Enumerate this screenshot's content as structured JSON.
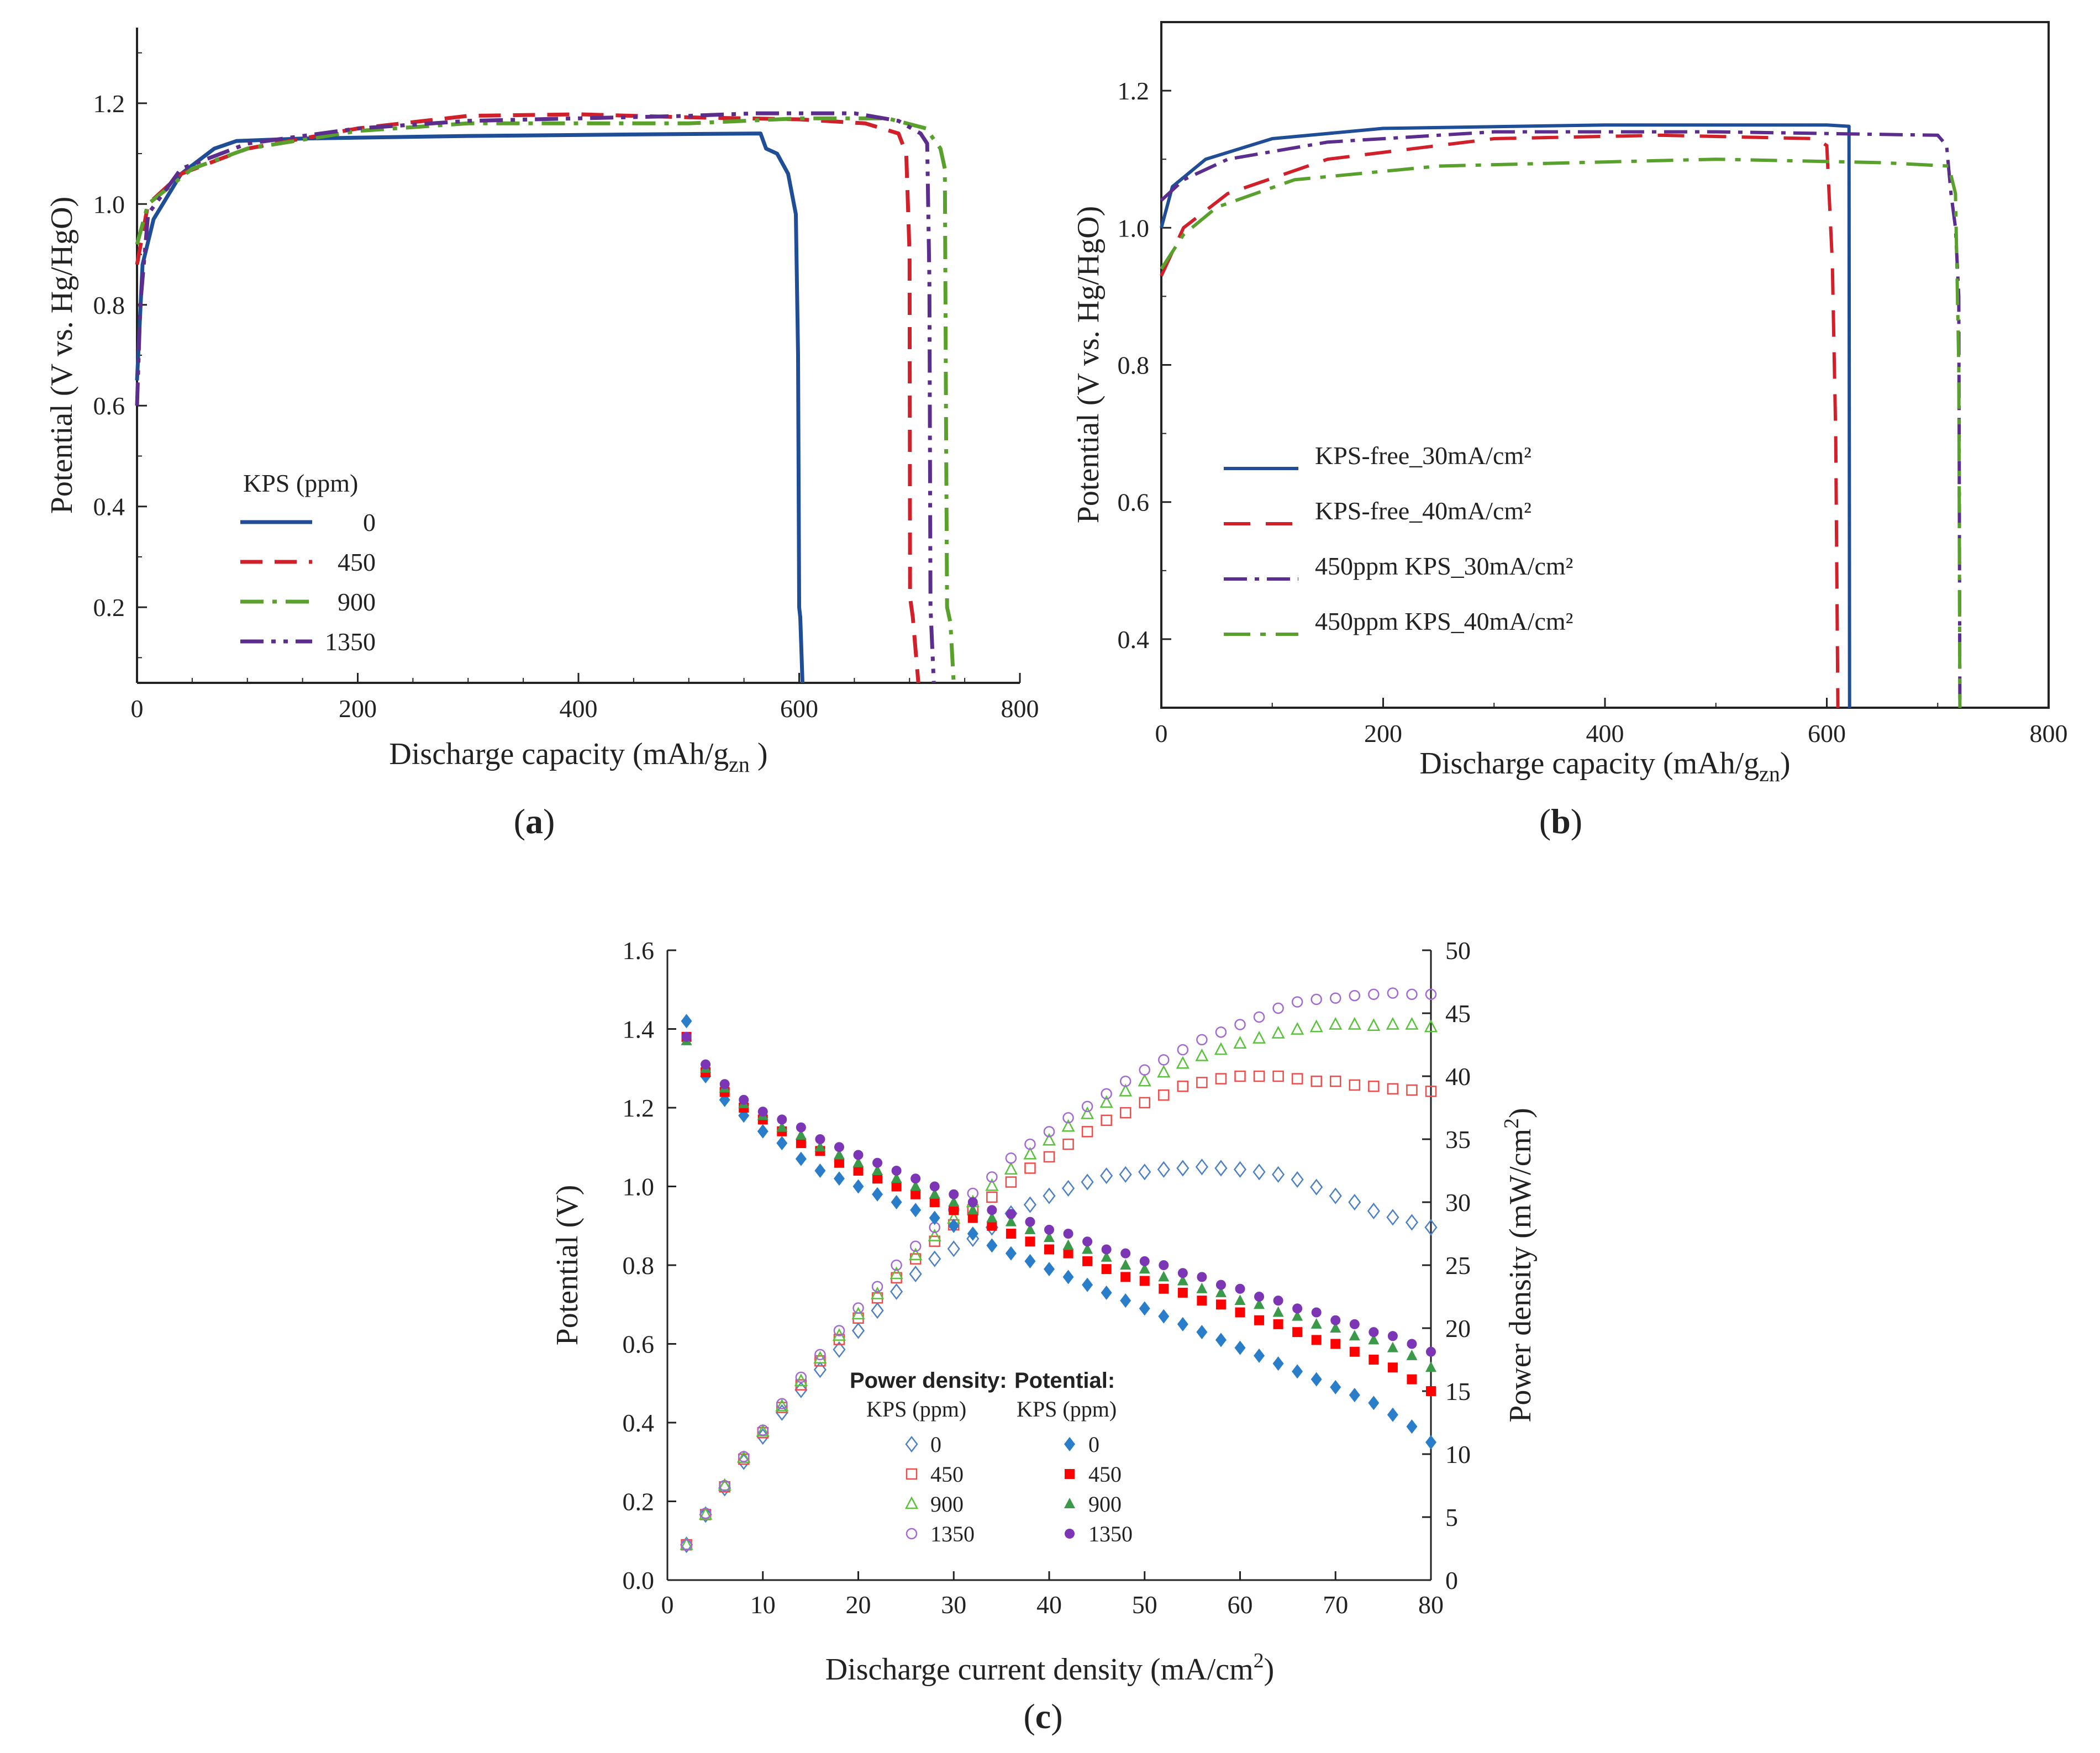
{
  "colors": {
    "kps0": "#1f4e96",
    "kps450": "#d0202a",
    "kps900": "#5aa02c",
    "kps1350": "#5b2d8c",
    "c_kps0": "#2a7dc9",
    "c_kps450": "#ff0000",
    "c_kps900": "#3a9a4a",
    "c_kps1350": "#7b35b5",
    "c_open0": "#4d80c4",
    "c_open450": "#ee4b4b",
    "c_open900": "#59c13a",
    "c_open1350": "#a06ad2"
  },
  "panels": {
    "a": "a",
    "b": "b",
    "c": "c"
  },
  "chart_data": [
    {
      "id": "a",
      "type": "line",
      "xlabel": "Discharge capacity (mAh/g",
      "xlabel_sub": "zn",
      "xlabel_tail": " )",
      "ylabel": "Potential (V vs. Hg/HgO)",
      "xlim": [
        0,
        800
      ],
      "ylim": [
        0.05,
        1.35
      ],
      "xticks": [
        0,
        200,
        400,
        600,
        800
      ],
      "yticks": [
        0.2,
        0.4,
        0.6,
        0.8,
        1,
        1.2
      ],
      "legend_title": "KPS (ppm)",
      "legend_position": "lower-left",
      "series": [
        {
          "name": "0",
          "style": "solid",
          "points": [
            [
              0,
              0.65
            ],
            [
              5,
              0.88
            ],
            [
              15,
              0.97
            ],
            [
              40,
              1.06
            ],
            [
              70,
              1.11
            ],
            [
              90,
              1.125
            ],
            [
              150,
              1.13
            ],
            [
              300,
              1.135
            ],
            [
              450,
              1.138
            ],
            [
              565,
              1.14
            ],
            [
              570,
              1.11
            ],
            [
              580,
              1.1
            ],
            [
              590,
              1.06
            ],
            [
              597,
              0.98
            ],
            [
              599,
              0.7
            ],
            [
              600,
              0.2
            ],
            [
              601,
              0.18
            ],
            [
              603,
              0.05
            ]
          ]
        },
        {
          "name": "450",
          "style": "dashed",
          "points": [
            [
              0,
              0.88
            ],
            [
              10,
              1.0
            ],
            [
              40,
              1.06
            ],
            [
              100,
              1.11
            ],
            [
              200,
              1.15
            ],
            [
              300,
              1.175
            ],
            [
              400,
              1.178
            ],
            [
              500,
              1.172
            ],
            [
              600,
              1.168
            ],
            [
              660,
              1.16
            ],
            [
              690,
              1.14
            ],
            [
              697,
              1.1
            ],
            [
              700,
              0.9
            ],
            [
              700.5,
              0.22
            ],
            [
              703,
              0.18
            ],
            [
              708,
              0.05
            ]
          ]
        },
        {
          "name": "900",
          "style": "dashdot",
          "points": [
            [
              0,
              0.92
            ],
            [
              10,
              1.0
            ],
            [
              50,
              1.07
            ],
            [
              100,
              1.11
            ],
            [
              200,
              1.145
            ],
            [
              300,
              1.16
            ],
            [
              500,
              1.16
            ],
            [
              600,
              1.17
            ],
            [
              680,
              1.17
            ],
            [
              715,
              1.15
            ],
            [
              728,
              1.11
            ],
            [
              732,
              1.07
            ],
            [
              733,
              0.6
            ],
            [
              734,
              0.2
            ],
            [
              737,
              0.17
            ],
            [
              740,
              0.05
            ]
          ]
        },
        {
          "name": "1350",
          "style": "dashdotdot",
          "points": [
            [
              0,
              0.6
            ],
            [
              3,
              0.8
            ],
            [
              10,
              0.98
            ],
            [
              40,
              1.07
            ],
            [
              100,
              1.12
            ],
            [
              200,
              1.15
            ],
            [
              300,
              1.165
            ],
            [
              400,
              1.17
            ],
            [
              500,
              1.175
            ],
            [
              560,
              1.18
            ],
            [
              650,
              1.18
            ],
            [
              690,
              1.165
            ],
            [
              710,
              1.14
            ],
            [
              716,
              1.12
            ],
            [
              718,
              0.85
            ],
            [
              719,
              0.2
            ],
            [
              722,
              0.05
            ]
          ]
        }
      ]
    },
    {
      "id": "b",
      "type": "line",
      "xlabel": "Discharge capacity (mAh/g",
      "xlabel_sub": "zn",
      "xlabel_tail": ")",
      "ylabel": "Potential (V vs. Hg/HgO)",
      "xlim": [
        0,
        800
      ],
      "ylim": [
        0.3,
        1.3
      ],
      "xticks": [
        0,
        200,
        400,
        600,
        800
      ],
      "yticks": [
        0.4,
        0.6,
        0.8,
        1,
        1.2
      ],
      "legend_position": "lower-left",
      "series": [
        {
          "name": "KPS-free_30mA/cm²",
          "style": "solid",
          "points": [
            [
              0,
              1.0
            ],
            [
              10,
              1.06
            ],
            [
              40,
              1.1
            ],
            [
              100,
              1.13
            ],
            [
              200,
              1.145
            ],
            [
              400,
              1.15
            ],
            [
              600,
              1.15
            ],
            [
              620,
              1.148
            ],
            [
              620.5,
              0.3
            ]
          ]
        },
        {
          "name": "KPS-free_40mA/cm²",
          "style": "dashed",
          "points": [
            [
              0,
              0.93
            ],
            [
              20,
              1.0
            ],
            [
              60,
              1.05
            ],
            [
              150,
              1.1
            ],
            [
              300,
              1.13
            ],
            [
              450,
              1.135
            ],
            [
              590,
              1.13
            ],
            [
              600,
              1.12
            ],
            [
              605,
              0.95
            ],
            [
              608,
              0.7
            ],
            [
              610,
              0.3
            ]
          ]
        },
        {
          "name": "450ppm KPS_30mA/cm²",
          "style": "dashdot",
          "points": [
            [
              0,
              1.04
            ],
            [
              20,
              1.07
            ],
            [
              60,
              1.1
            ],
            [
              150,
              1.125
            ],
            [
              300,
              1.14
            ],
            [
              500,
              1.14
            ],
            [
              700,
              1.135
            ],
            [
              708,
              1.12
            ],
            [
              712,
              1.05
            ],
            [
              716,
              1.0
            ],
            [
              719,
              0.9
            ],
            [
              720,
              0.3
            ]
          ]
        },
        {
          "name": "450ppm KPS_40mA/cm²",
          "style": "dashdot",
          "points": [
            [
              0,
              0.94
            ],
            [
              20,
              0.99
            ],
            [
              50,
              1.03
            ],
            [
              120,
              1.07
            ],
            [
              250,
              1.09
            ],
            [
              500,
              1.1
            ],
            [
              650,
              1.095
            ],
            [
              710,
              1.09
            ],
            [
              716,
              1.05
            ],
            [
              719,
              0.8
            ],
            [
              720,
              0.3
            ]
          ]
        }
      ]
    },
    {
      "id": "c",
      "type": "scatter",
      "xlabel": "Discharge current density (mA/cm",
      "xlabel_sup": "2",
      "xlabel_tail": ")",
      "ylabel": "Potential (V)",
      "y2label": "Power density (mW/cm",
      "y2label_sup": "2",
      "y2label_tail": ")",
      "xlim": [
        0,
        80
      ],
      "ylim": [
        0,
        1.6
      ],
      "y2lim": [
        0,
        50
      ],
      "xticks": [
        0,
        10,
        20,
        30,
        40,
        50,
        60,
        70,
        80
      ],
      "yticks": [
        0.0,
        0.2,
        0.4,
        0.6,
        0.8,
        1.0,
        1.2,
        1.4,
        1.6
      ],
      "y2ticks": [
        0,
        5,
        10,
        15,
        20,
        25,
        30,
        35,
        40,
        45,
        50
      ],
      "legend": {
        "power_title": "Power density:",
        "potential_title": "Potential:",
        "sub": "KPS (ppm)",
        "labels": [
          "0",
          "450",
          "900",
          "1350"
        ]
      },
      "x": [
        2,
        4,
        6,
        8,
        10,
        12,
        14,
        16,
        18,
        20,
        22,
        24,
        26,
        28,
        30,
        32,
        34,
        36,
        38,
        40,
        42,
        44,
        46,
        48,
        50,
        52,
        54,
        56,
        58,
        60,
        62,
        64,
        66,
        68,
        70,
        72,
        74,
        76,
        78,
        80
      ],
      "potential": [
        {
          "name": "0",
          "values": [
            1.42,
            1.28,
            1.22,
            1.18,
            1.14,
            1.11,
            1.07,
            1.04,
            1.02,
            1.0,
            0.98,
            0.96,
            0.94,
            0.92,
            0.9,
            0.88,
            0.85,
            0.83,
            0.81,
            0.79,
            0.77,
            0.75,
            0.73,
            0.71,
            0.69,
            0.67,
            0.65,
            0.63,
            0.61,
            0.59,
            0.57,
            0.55,
            0.53,
            0.51,
            0.49,
            0.47,
            0.45,
            0.42,
            0.39,
            0.35
          ]
        },
        {
          "name": "450",
          "values": [
            1.38,
            1.29,
            1.24,
            1.2,
            1.17,
            1.14,
            1.11,
            1.09,
            1.06,
            1.04,
            1.02,
            1.0,
            0.98,
            0.96,
            0.94,
            0.92,
            0.9,
            0.88,
            0.86,
            0.84,
            0.83,
            0.81,
            0.79,
            0.77,
            0.76,
            0.74,
            0.73,
            0.71,
            0.7,
            0.68,
            0.66,
            0.65,
            0.63,
            0.61,
            0.6,
            0.58,
            0.56,
            0.54,
            0.51,
            0.48
          ]
        },
        {
          "name": "900",
          "values": [
            1.37,
            1.3,
            1.25,
            1.21,
            1.18,
            1.15,
            1.13,
            1.1,
            1.08,
            1.06,
            1.04,
            1.02,
            1.0,
            0.98,
            0.96,
            0.94,
            0.92,
            0.91,
            0.89,
            0.87,
            0.85,
            0.84,
            0.82,
            0.8,
            0.79,
            0.77,
            0.76,
            0.74,
            0.73,
            0.71,
            0.7,
            0.68,
            0.67,
            0.65,
            0.64,
            0.62,
            0.61,
            0.59,
            0.57,
            0.54
          ]
        },
        {
          "name": "1350",
          "values": [
            1.38,
            1.31,
            1.26,
            1.22,
            1.19,
            1.17,
            1.15,
            1.12,
            1.1,
            1.08,
            1.06,
            1.04,
            1.02,
            1.0,
            0.98,
            0.96,
            0.94,
            0.93,
            0.91,
            0.89,
            0.88,
            0.86,
            0.84,
            0.83,
            0.81,
            0.8,
            0.78,
            0.77,
            0.75,
            0.74,
            0.72,
            0.71,
            0.69,
            0.68,
            0.66,
            0.65,
            0.63,
            0.62,
            0.6,
            0.58
          ]
        }
      ],
      "power": [
        {
          "name": "0",
          "values": [
            2.8,
            5.2,
            7.3,
            9.4,
            11.4,
            13.3,
            15.1,
            16.7,
            18.3,
            19.8,
            21.4,
            22.9,
            24.3,
            25.5,
            26.3,
            27.1,
            28.0,
            29.1,
            29.8,
            30.5,
            31.1,
            31.6,
            32.1,
            32.2,
            32.4,
            32.6,
            32.7,
            32.8,
            32.7,
            32.6,
            32.4,
            32.2,
            31.8,
            31.2,
            30.5,
            30.0,
            29.3,
            28.8,
            28.4,
            28.0
          ]
        },
        {
          "name": "450",
          "values": [
            2.8,
            5.2,
            7.4,
            9.6,
            11.7,
            13.7,
            15.5,
            17.4,
            19.1,
            20.8,
            22.4,
            24.0,
            25.5,
            26.9,
            28.2,
            29.4,
            30.4,
            31.6,
            32.7,
            33.6,
            34.6,
            35.6,
            36.5,
            37.1,
            37.9,
            38.5,
            39.2,
            39.5,
            39.8,
            40.0,
            40.0,
            40.0,
            39.8,
            39.6,
            39.6,
            39.3,
            39.2,
            39.0,
            38.9,
            38.8
          ]
        },
        {
          "name": "900",
          "values": [
            2.8,
            5.2,
            7.5,
            9.7,
            11.8,
            13.8,
            15.8,
            17.6,
            19.4,
            21.1,
            22.7,
            24.3,
            25.8,
            27.3,
            28.7,
            30.0,
            31.3,
            32.6,
            33.8,
            34.9,
            36.0,
            37.0,
            37.9,
            38.8,
            39.6,
            40.3,
            41.0,
            41.6,
            42.1,
            42.6,
            43.0,
            43.4,
            43.7,
            43.9,
            44.1,
            44.1,
            44.0,
            44.1,
            44.1,
            43.9
          ]
        },
        {
          "name": "1350",
          "values": [
            2.8,
            5.3,
            7.5,
            9.8,
            11.9,
            14.0,
            16.1,
            17.9,
            19.8,
            21.6,
            23.3,
            25.0,
            26.5,
            28.0,
            29.4,
            30.7,
            32.0,
            33.5,
            34.6,
            35.6,
            36.7,
            37.6,
            38.6,
            39.6,
            40.5,
            41.3,
            42.1,
            42.9,
            43.5,
            44.1,
            44.7,
            45.4,
            45.9,
            46.1,
            46.2,
            46.4,
            46.5,
            46.6,
            46.5,
            46.5
          ]
        }
      ]
    }
  ]
}
